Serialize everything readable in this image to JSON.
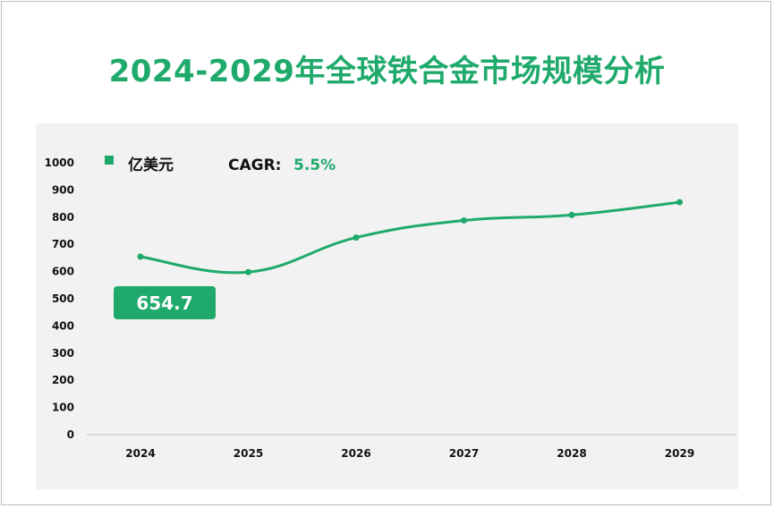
{
  "title": "2024-2029年全球铁合金市场规模分析",
  "colors": {
    "accent": "#1faa6c",
    "panel": "#f2f2f2"
  },
  "legend": {
    "marker_icon": "square-marker-icon",
    "label": "亿美元"
  },
  "cagr": {
    "label": "CAGR:",
    "value": "5.5%"
  },
  "callout": {
    "value": "654.7"
  },
  "chart_data": {
    "type": "line",
    "categories": [
      "2024",
      "2025",
      "2026",
      "2027",
      "2028",
      "2029"
    ],
    "series": [
      {
        "values": [
          654.7,
          598,
          725,
          788,
          808,
          855
        ]
      }
    ],
    "yticks": [
      "0",
      "100",
      "200",
      "300",
      "400",
      "500",
      "600",
      "700",
      "800",
      "900",
      "1000"
    ],
    "ylim": [
      0,
      1000
    ],
    "grid": false,
    "legend_position": "top-left"
  }
}
